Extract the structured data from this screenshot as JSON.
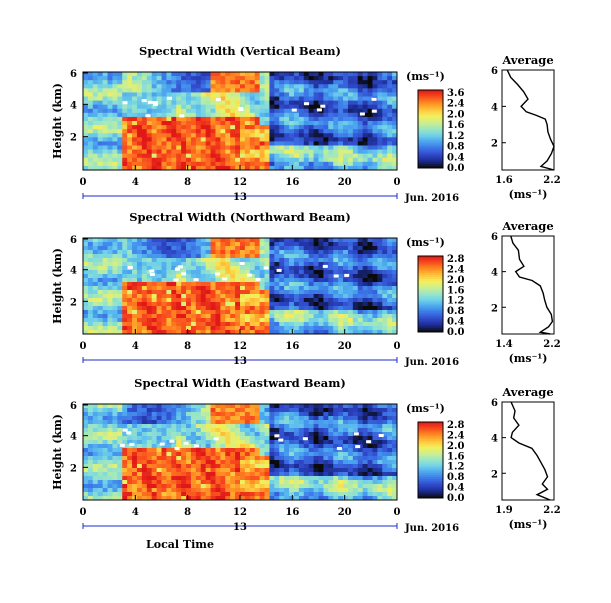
{
  "colors": {
    "scale": [
      "#0a0a0a",
      "#1a2a8c",
      "#2f47c8",
      "#3c72e6",
      "#4aa3ef",
      "#6fd0ea",
      "#9be6c4",
      "#cdef8e",
      "#f3ef5c",
      "#ffc43a",
      "#ff8a22",
      "#f84a1e",
      "#e01818"
    ]
  },
  "chart_data": [
    {
      "type": "heatmap",
      "title": "Spectral Width (Vertical Beam)",
      "ylabel": "Height (km)",
      "y_ticks": [
        "6",
        "4",
        "2"
      ],
      "x_ticks": [
        "0",
        "4",
        "8",
        "12",
        "16",
        "20",
        "0"
      ],
      "date_day": "13",
      "date_label": "Jun. 2016",
      "colorbar_unit": "(ms⁻¹)",
      "colorbar_ticks": [
        "3.6",
        "2.4",
        "2.0",
        "1.6",
        "1.2",
        "0.8",
        "0.4",
        "0.0"
      ],
      "profile": {
        "title": "Average",
        "xlabel": "(ms⁻¹)",
        "x_ticks": [
          "1.6",
          "2.2"
        ],
        "y_ticks": [
          "6",
          "4",
          "2"
        ],
        "xlim": [
          1.6,
          2.2
        ],
        "ylim": [
          0.5,
          6
        ],
        "points": [
          [
            1.66,
            6.0
          ],
          [
            1.7,
            5.6
          ],
          [
            1.78,
            5.2
          ],
          [
            1.85,
            4.8
          ],
          [
            1.9,
            4.4
          ],
          [
            1.82,
            4.0
          ],
          [
            1.88,
            3.7
          ],
          [
            2.0,
            3.5
          ],
          [
            2.1,
            3.3
          ],
          [
            2.12,
            3.0
          ],
          [
            2.13,
            2.6
          ],
          [
            2.16,
            2.2
          ],
          [
            2.2,
            1.8
          ],
          [
            2.17,
            1.4
          ],
          [
            2.12,
            1.0
          ],
          [
            2.05,
            0.7
          ],
          [
            2.2,
            0.5
          ]
        ]
      }
    },
    {
      "type": "heatmap",
      "title": "Spectral Width (Northward Beam)",
      "ylabel": "Height (km)",
      "y_ticks": [
        "6",
        "4",
        "2"
      ],
      "x_ticks": [
        "0",
        "4",
        "8",
        "12",
        "16",
        "20",
        "0"
      ],
      "date_day": "13",
      "date_label": "Jun. 2016",
      "colorbar_unit": "(ms⁻¹)",
      "colorbar_ticks": [
        "2.8",
        "2.4",
        "2.0",
        "1.6",
        "1.2",
        "0.8",
        "0.4",
        "0.0"
      ],
      "profile": {
        "title": "Average",
        "xlabel": "(ms⁻¹)",
        "x_ticks": [
          "1.4",
          "2.2"
        ],
        "y_ticks": [
          "6",
          "4",
          "2"
        ],
        "xlim": [
          1.3,
          2.25
        ],
        "ylim": [
          0.5,
          6
        ],
        "points": [
          [
            1.46,
            6.0
          ],
          [
            1.5,
            5.6
          ],
          [
            1.6,
            5.2
          ],
          [
            1.62,
            4.7
          ],
          [
            1.7,
            4.3
          ],
          [
            1.55,
            4.0
          ],
          [
            1.62,
            3.7
          ],
          [
            1.85,
            3.5
          ],
          [
            2.0,
            3.2
          ],
          [
            2.05,
            2.8
          ],
          [
            2.08,
            2.4
          ],
          [
            2.12,
            2.0
          ],
          [
            2.2,
            1.6
          ],
          [
            2.22,
            1.2
          ],
          [
            2.15,
            0.9
          ],
          [
            2.0,
            0.6
          ],
          [
            2.18,
            0.5
          ]
        ]
      }
    },
    {
      "type": "heatmap",
      "title": "Spectral Width (Eastward Beam)",
      "ylabel": "Height (km)",
      "y_ticks": [
        "6",
        "4",
        "2"
      ],
      "x_ticks": [
        "0",
        "4",
        "8",
        "12",
        "16",
        "20",
        "0"
      ],
      "date_day": "13",
      "date_label": "Jun. 2016",
      "colorbar_unit": "(ms⁻¹)",
      "colorbar_ticks": [
        "2.8",
        "2.4",
        "2.0",
        "1.6",
        "1.2",
        "0.8",
        "0.4",
        "0.0"
      ],
      "profile": {
        "title": "Average",
        "xlabel": "(ms⁻¹)",
        "x_ticks": [
          "1.9",
          "2.2"
        ],
        "y_ticks": [
          "6",
          "4",
          "2"
        ],
        "xlim": [
          1.85,
          2.25
        ],
        "ylim": [
          0.5,
          6
        ],
        "points": [
          [
            1.92,
            6.0
          ],
          [
            1.95,
            5.5
          ],
          [
            1.94,
            5.1
          ],
          [
            1.98,
            4.7
          ],
          [
            1.93,
            4.3
          ],
          [
            1.92,
            4.0
          ],
          [
            1.98,
            3.7
          ],
          [
            2.08,
            3.4
          ],
          [
            2.12,
            3.0
          ],
          [
            2.15,
            2.6
          ],
          [
            2.18,
            2.2
          ],
          [
            2.2,
            1.8
          ],
          [
            2.16,
            1.4
          ],
          [
            2.2,
            1.1
          ],
          [
            2.12,
            0.8
          ],
          [
            2.22,
            0.5
          ]
        ]
      }
    }
  ],
  "common_xlabel": "Local Time"
}
